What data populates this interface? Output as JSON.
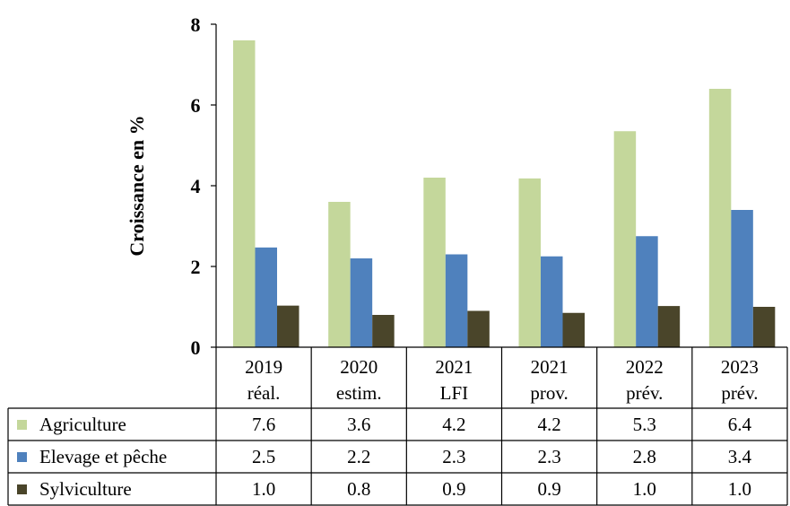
{
  "chart_data": {
    "type": "bar",
    "ylabel": "Croissance en %",
    "ylim": [
      0,
      8
    ],
    "yticks": [
      0,
      2,
      4,
      6,
      8
    ],
    "categories": [
      [
        "2019",
        "réal."
      ],
      [
        "2020",
        "estim."
      ],
      [
        "2021",
        "LFI"
      ],
      [
        "2021",
        "prov."
      ],
      [
        "2022",
        "prév."
      ],
      [
        "2023",
        "prév."
      ]
    ],
    "series": [
      {
        "name": "Agriculture",
        "color": "#c4d79b",
        "values": [
          7.6,
          3.6,
          4.2,
          4.18,
          5.35,
          6.4
        ],
        "labels": [
          "7.6",
          "3.6",
          "4.2",
          "4.2",
          "5.3",
          "6.4"
        ]
      },
      {
        "name": "Elevage et pêche",
        "color": "#4f81bd",
        "values": [
          2.47,
          2.2,
          2.3,
          2.25,
          2.75,
          3.4
        ],
        "labels": [
          "2.5",
          "2.2",
          "2.3",
          "2.3",
          "2.8",
          "3.4"
        ]
      },
      {
        "name": "Sylviculture",
        "color": "#4a452a",
        "values": [
          1.03,
          0.8,
          0.9,
          0.85,
          1.02,
          1.0
        ],
        "labels": [
          "1.0",
          "0.8",
          "0.9",
          "0.9",
          "1.0",
          "1.0"
        ]
      }
    ],
    "grid": false,
    "legend": "data-table"
  }
}
